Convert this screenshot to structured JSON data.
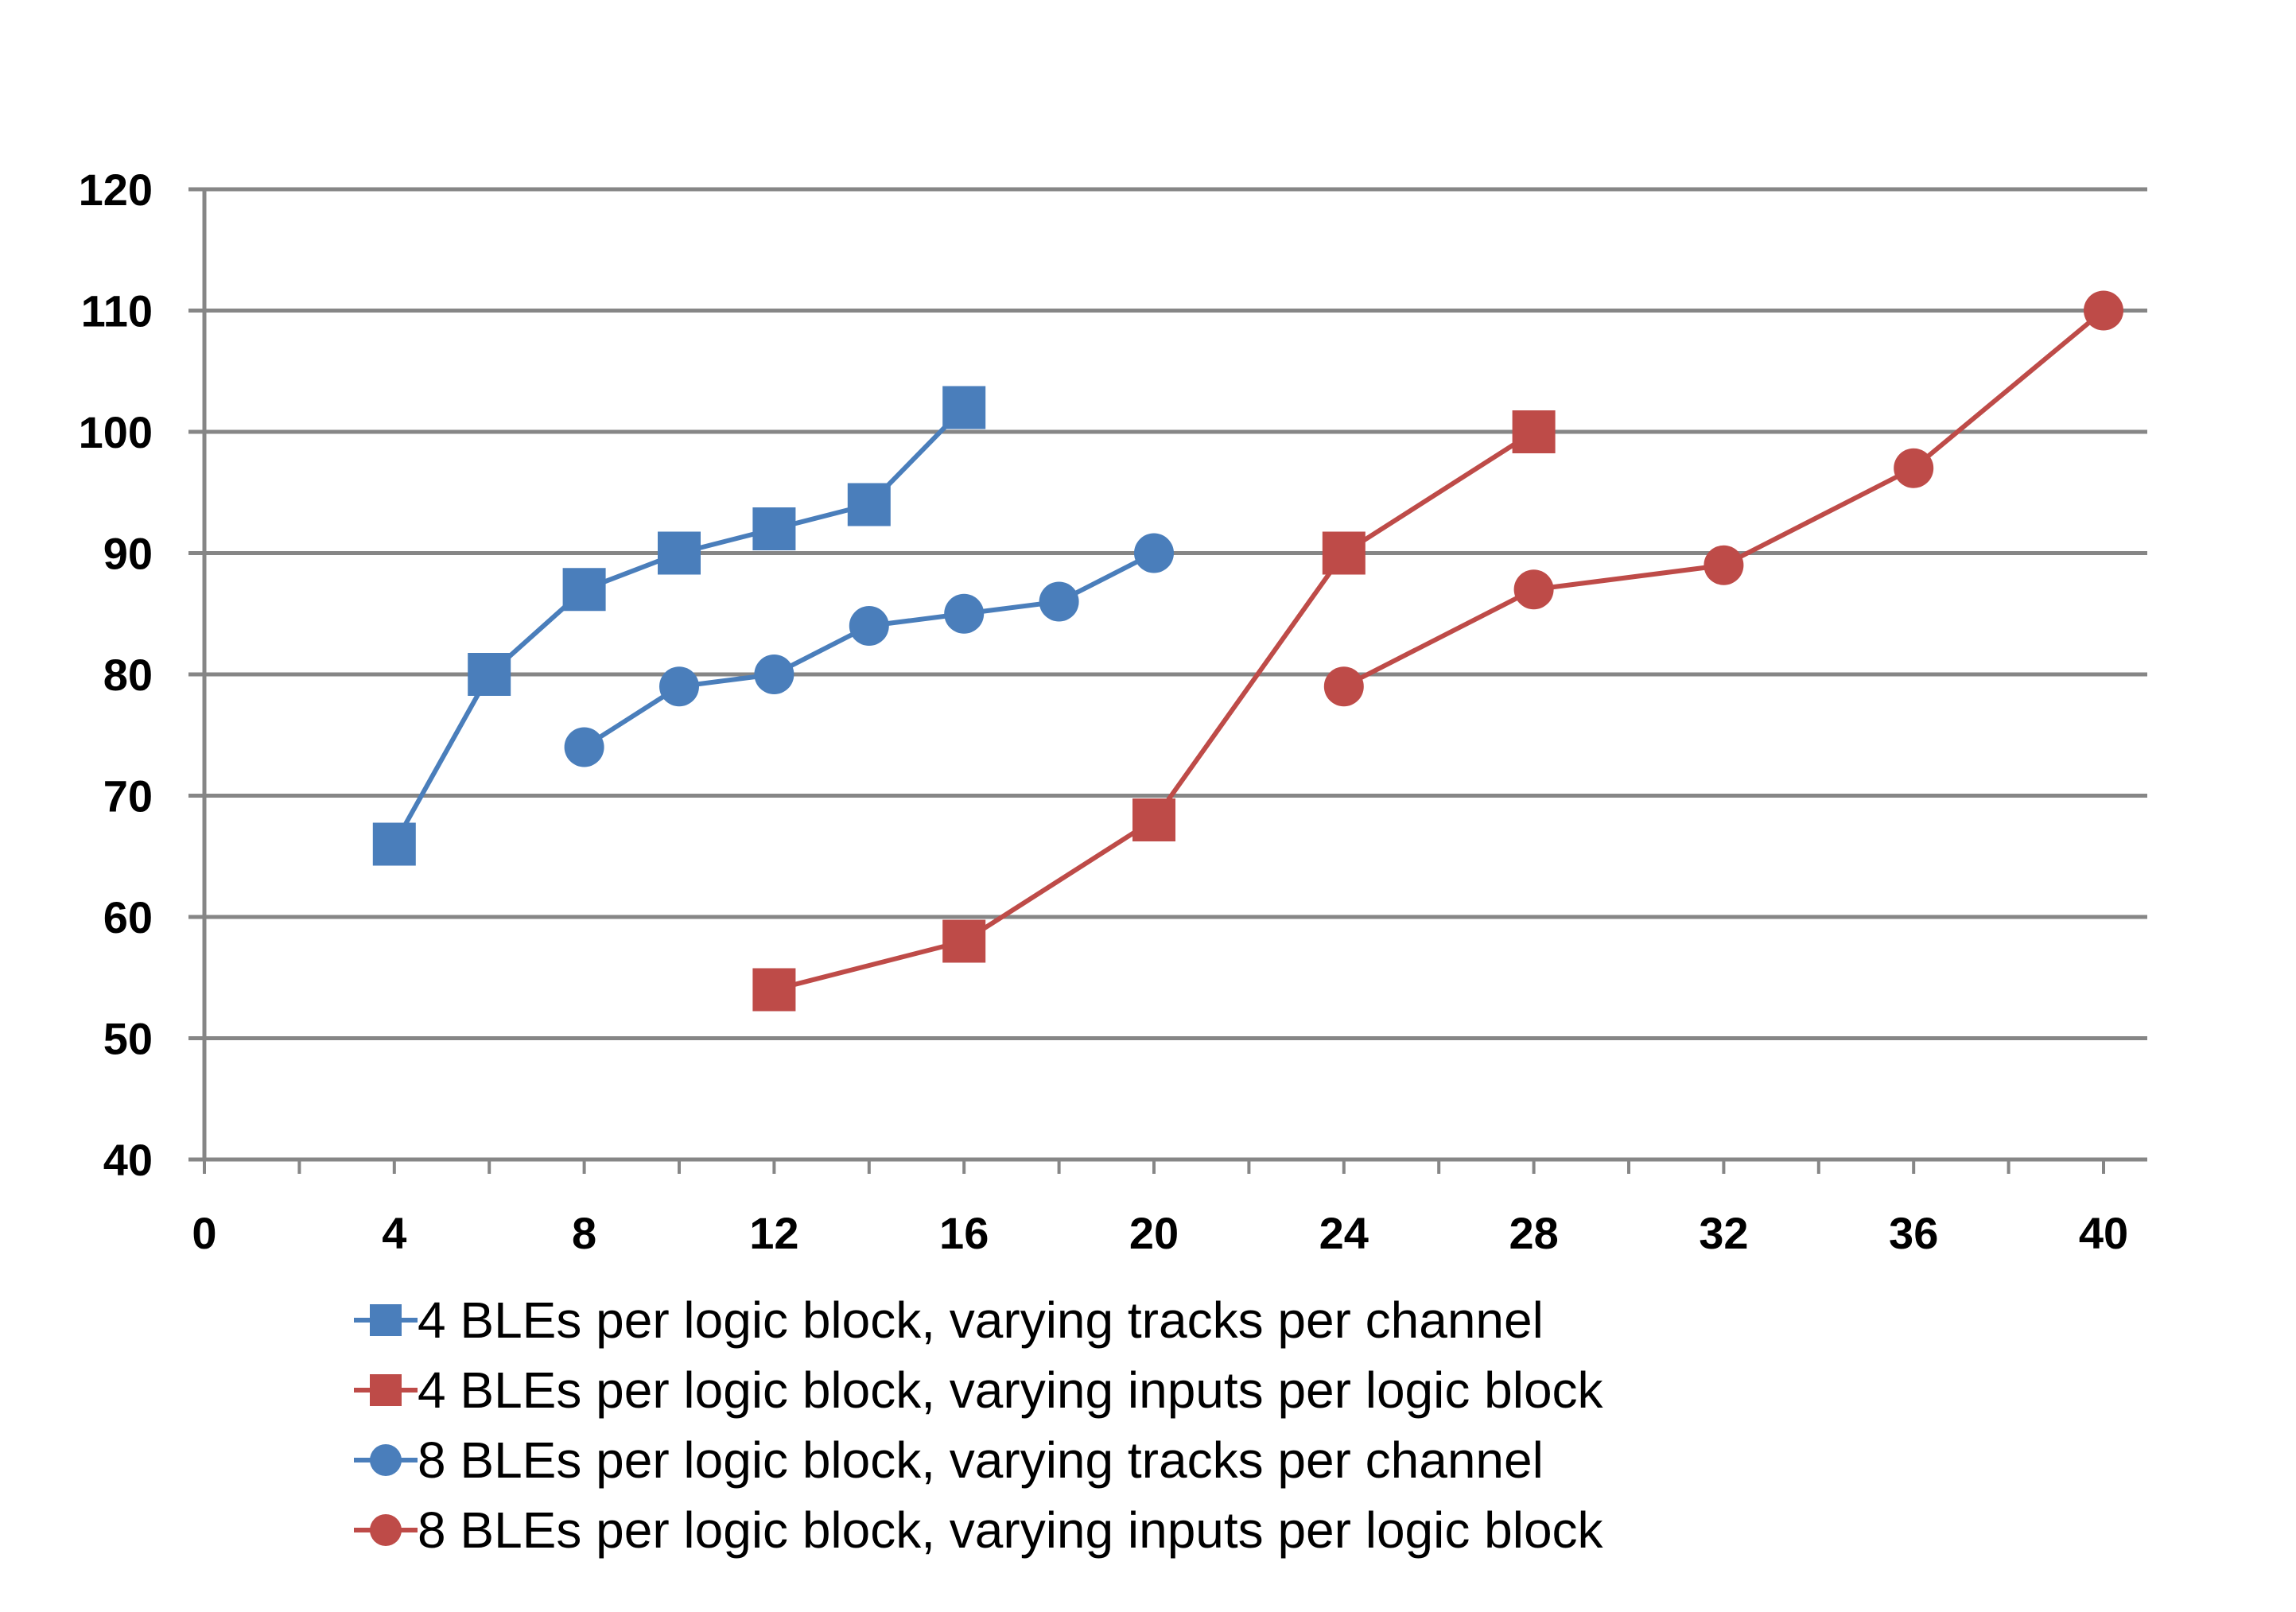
{
  "chart_data": {
    "type": "line",
    "title": "",
    "xlabel": "",
    "ylabel": "",
    "xlim": [
      0,
      41
    ],
    "ylim": [
      40,
      120
    ],
    "x_ticks": [
      0,
      4,
      8,
      12,
      16,
      20,
      24,
      28,
      32,
      36,
      40
    ],
    "x_tick_labels": [
      "0",
      "4",
      "8",
      "12",
      "16",
      "20",
      "24",
      "28",
      "32",
      "36",
      "40"
    ],
    "x_minor_step": 2,
    "y_ticks": [
      40,
      50,
      60,
      70,
      80,
      90,
      100,
      110,
      120
    ],
    "y_tick_labels": [
      "40",
      "50",
      "60",
      "70",
      "80",
      "90",
      "100",
      "110",
      "120"
    ],
    "grid": true,
    "legend_position": "bottom",
    "series": [
      {
        "name": "4 BLEs per logic block, varying tracks per channel",
        "color": "#4a7ebb",
        "marker": "square",
        "x": [
          4,
          6,
          8,
          10,
          12,
          14,
          16
        ],
        "y": [
          66,
          80,
          87,
          90,
          92,
          94,
          102
        ]
      },
      {
        "name": "4 BLEs per logic block, varying inputs per logic block",
        "color": "#be4b48",
        "marker": "square",
        "x": [
          12,
          16,
          20,
          24,
          28
        ],
        "y": [
          54,
          58,
          68,
          90,
          100
        ]
      },
      {
        "name": "8 BLEs per logic block, varying tracks per channel",
        "color": "#4a7ebb",
        "marker": "circle",
        "x": [
          8,
          10,
          12,
          14,
          16,
          18,
          20
        ],
        "y": [
          74,
          79,
          80,
          84,
          85,
          86,
          90
        ]
      },
      {
        "name": "8 BLEs per logic block, varying inputs per logic block",
        "color": "#be4b48",
        "marker": "circle",
        "x": [
          24,
          28,
          32,
          36,
          40
        ],
        "y": [
          79,
          87,
          89,
          97,
          110
        ]
      }
    ]
  }
}
